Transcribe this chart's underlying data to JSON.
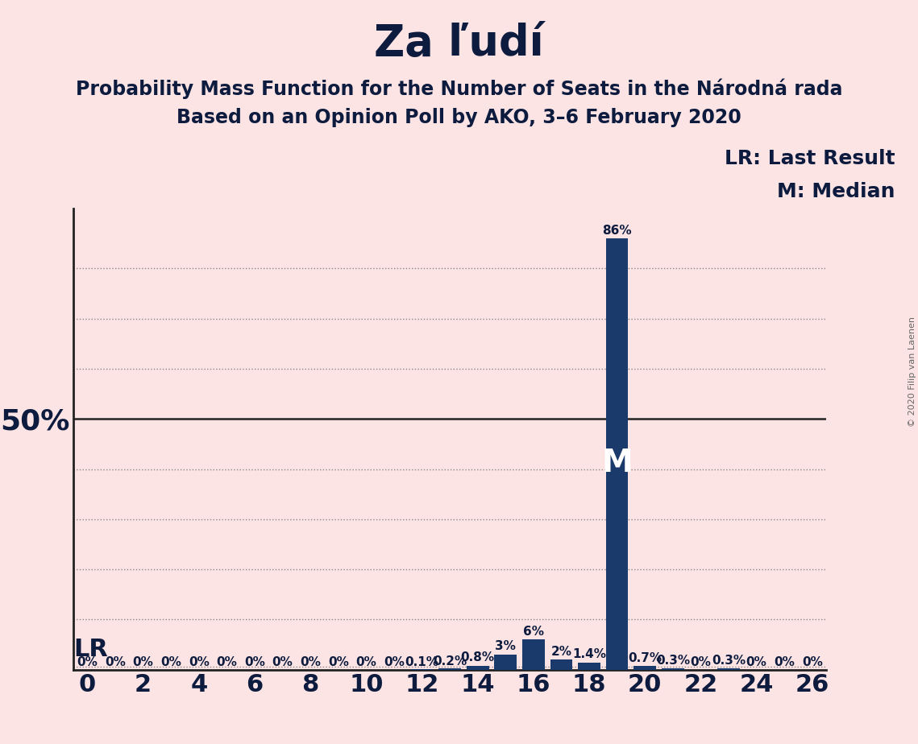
{
  "title": "Za ľudí",
  "subtitle1": "Probability Mass Function for the Number of Seats in the Národná rada",
  "subtitle2": "Based on an Opinion Poll by AKO, 3–6 February 2020",
  "copyright": "© 2020 Filip van Laenen",
  "background_color": "#fce4e4",
  "bar_color": "#1a3a6b",
  "seats": [
    0,
    1,
    2,
    3,
    4,
    5,
    6,
    7,
    8,
    9,
    10,
    11,
    12,
    13,
    14,
    15,
    16,
    17,
    18,
    19,
    20,
    21,
    22,
    23,
    24,
    25,
    26
  ],
  "probabilities": [
    0.0,
    0.0,
    0.0,
    0.0,
    0.0,
    0.0,
    0.0,
    0.0,
    0.0,
    0.0,
    0.0,
    0.0,
    0.001,
    0.002,
    0.008,
    0.03,
    0.06,
    0.02,
    0.014,
    0.86,
    0.007,
    0.003,
    0.0,
    0.003,
    0.0,
    0.0,
    0.0
  ],
  "bar_labels": [
    "0%",
    "0%",
    "0%",
    "0%",
    "0%",
    "0%",
    "0%",
    "0%",
    "0%",
    "0%",
    "0%",
    "0%",
    "0.1%",
    "0.2%",
    "0.8%",
    "3%",
    "6%",
    "2%",
    "1.4%",
    "86%",
    "0.7%",
    "0.3%",
    "0%",
    "0.3%",
    "0%",
    "0%",
    "0%"
  ],
  "median_seat": 19,
  "lr_seat": 0,
  "lr_label": "LR",
  "median_label": "M",
  "ylim_max": 0.92,
  "ytick_val": 0.5,
  "ytick_label": "50%",
  "xlim_min": -0.5,
  "xlim_max": 26.5,
  "legend_lr": "LR: Last Result",
  "legend_m": "M: Median",
  "title_fontsize": 38,
  "subtitle_fontsize": 17,
  "xtick_fontsize": 22,
  "bar_label_fontsize": 11,
  "legend_fontsize": 18,
  "lr_label_fontsize": 22,
  "median_label_fontsize": 28,
  "ytick_fontsize": 26,
  "copyright_fontsize": 8,
  "grid_color": "#888888",
  "solid_line_color": "#222222",
  "text_color": "#0d1b3e"
}
